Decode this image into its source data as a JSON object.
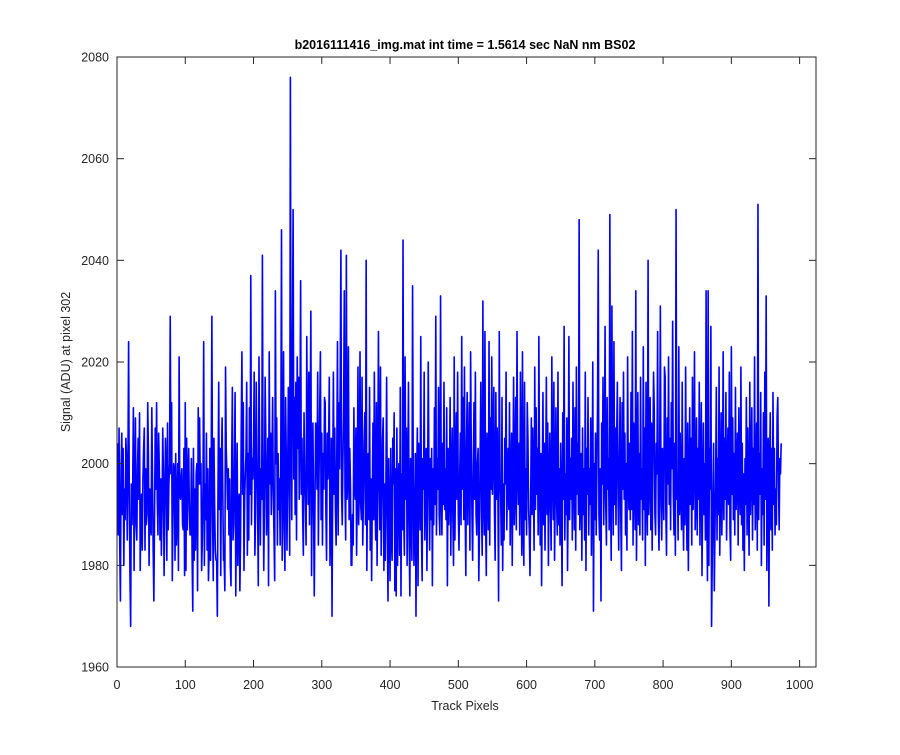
{
  "chart_data": {
    "type": "line",
    "title": "b2016111416_img.mat int time = 1.5614 sec  NaN nm BS02",
    "xlabel": "Track Pixels",
    "ylabel": "Signal (ADU) at pixel 302",
    "xlim": [
      0,
      1024
    ],
    "ylim": [
      1960,
      2080
    ],
    "xticks": [
      0,
      100,
      200,
      300,
      400,
      500,
      600,
      700,
      800,
      900,
      1000
    ],
    "yticks": [
      1960,
      1980,
      2000,
      2020,
      2040,
      2060,
      2080
    ],
    "grid": false,
    "legend": "none",
    "line_color": "#0000ff",
    "series": [
      {
        "x_start": 1,
        "x_step": 1,
        "approximate_shape": "noisy signal around 2000 ADU, approx. range 1968-2076",
        "values": [
          2004,
          1986,
          2007,
          1984,
          1973,
          1999,
          2006,
          1990,
          2003,
          1980,
          1995,
          1989,
          2005,
          2001,
          1985,
          1999,
          2024,
          1994,
          1978,
          1968,
          1996,
          1988,
          1996,
          2011,
          1979,
          1996,
          2009,
          1988,
          1985,
          1999,
          2005,
          1993,
          2010,
          1979,
          1991,
          1994,
          1983,
          1997,
          2003,
          2007,
          1983,
          1999,
          1988,
          1990,
          2012,
          2002,
          1980,
          1995,
          1989,
          1986,
          2011,
          1997,
          1983,
          1973,
          1990,
          2007,
          1995,
          2012,
          1993,
          1986,
          2006,
          1999,
          1985,
          1997,
          1982,
          1991,
          2007,
          1998,
          1978,
          1992,
          2005,
          1999,
          1981,
          2008,
          1987,
          1996,
          2000,
          2029,
          1998,
          2012,
          1977,
          1990,
          2000,
          1999,
          1981,
          2002,
          1984,
          1991,
          2000,
          1979,
          2021,
          1995,
          1993,
          1997,
          1999,
          1988,
          1987,
          2003,
          1978,
          2012,
          1979,
          2005,
          1987,
          1998,
          2003,
          1991,
          1986,
          1986,
          2001,
          1982,
          1971,
          2003,
          1981,
          1995,
          1983,
          1998,
          2000,
          1975,
          2011,
          1996,
          2009,
          1996,
          2000,
          1979,
          1985,
          1996,
          2024,
          1980,
          1996,
          1989,
          2006,
          1983,
          1999,
          1977,
          1983,
          2003,
          1981,
          1999,
          2029,
          1990,
          1977,
          2005,
          1992,
          1983,
          1981,
          1981,
          1970,
          1996,
          2016,
          1991,
          2003,
          1978,
          2000,
          2009,
          1994,
          1981,
          1981,
          1975,
          2019,
          2003,
          1998,
          1991,
          1999,
          1986,
          1997,
          1980,
          1976,
          2000,
          2015,
          1985,
          1988,
          2000,
          2014,
          1974,
          1991,
          2004,
          1980,
          1992,
          1994,
          1975,
          1985,
          2007,
          2022,
          1994,
          2012,
          1979,
          1993,
          1998,
          2002,
          2016,
          1982,
          2002,
          1985,
          2011,
          1994,
          2037,
          1988,
          2001,
          1997,
          2004,
          2018,
          1982,
          1990,
          2016,
          2001,
          1991,
          1976,
          2021,
          2002,
          1984,
          1999,
          1993,
          2041,
          1997,
          1979,
          1993,
          2017,
          2005,
          1986,
          1994,
          2005,
          1976,
          2022,
          1996,
          2006,
          1990,
          2000,
          2013,
          1994,
          1986,
          1977,
          2034,
          2000,
          2009,
          1984,
          2002,
          1991,
          1997,
          1984,
          2004,
          2046,
          1981,
          1995,
          2022,
          1987,
          1979,
          2013,
          2001,
          1983,
          1997,
          2015,
          1999,
          1982,
          2076,
          2007,
          1989,
          2023,
          2050,
          1997,
          2013,
          1990,
          2016,
          1985,
          2021,
          2003,
          2017,
          1993,
          2008,
          2036,
          1994,
          2005,
          1990,
          1982,
          2010,
          1998,
          1993,
          1984,
          2025,
          2003,
          1992,
          2018,
          1988,
          2007,
          2030,
          1978,
          1997,
          2008,
          1991,
          1974,
          1992,
          2008,
          2006,
          1995,
          2018,
          1984,
          1998,
          2011,
          2022,
          1989,
          2006,
          1984,
          2002,
          1995,
          2013,
          2012,
          1991,
          1981,
          2006,
          1997,
          2004,
          2017,
          1980,
          1989,
          2005,
          1970,
          1996,
          2018,
          1994,
          2007,
          1991,
          1984,
          2002,
          2024,
          1986,
          2012,
          1999,
          2017,
          2042,
          1994,
          1988,
          2001,
          2011,
          2034,
          1995,
          1985,
          2041,
          1993,
          1996,
          2023,
          1989,
          2003,
          1996,
          1980,
          1980,
          1990,
          1984,
          2011,
          1996,
          1993,
          2007,
          1982,
          1996,
          2019,
          1988,
          1995,
          2022,
          1992,
          1989,
          2017,
          1984,
          1993,
          2004,
          2010,
          1988,
          2040,
          1979,
          1996,
          2002,
          1989,
          2015,
          1983,
          1997,
          1977,
          1994,
          2008,
          1989,
          2018,
          1993,
          1985,
          2012,
          1980,
          1996,
          2026,
          1998,
          1987,
          2019,
          1982,
          1992,
          2005,
          2009,
          1979,
          1996,
          1981,
          1997,
          2017,
          1988,
          1973,
          2001,
          1990,
          1977,
          2003,
          1985,
          1981,
          2005,
          1996,
          2010,
          1975,
          1999,
          1974,
          2007,
          1980,
          1996,
          2000,
          1982,
          2015,
          1974,
          1998,
          1987,
          2044,
          1990,
          1982,
          2021,
          1993,
          2007,
          1980,
          1997,
          2016,
          1985,
          1974,
          2001,
          1992,
          1981,
          2035,
          1997,
          1980,
          1988,
          2002,
          1970,
          1997,
          2007,
          1976,
          2004,
          1998,
          1987,
          2025,
          1987,
          1977,
          2001,
          1995,
          2018,
          1985,
          1999,
          2003,
          1979,
          1995,
          2020,
          1998,
          1983,
          2001,
          1989,
          2003,
          1976,
          1999,
          1988,
          2011,
          1992,
          2029,
          1986,
          2001,
          1995,
          2015,
          1990,
          1986,
          2033,
          1995,
          1986,
          2004,
          1992,
          2016,
          1991,
          1999,
          1989,
          2011,
          1976,
          2003,
          1988,
          1995,
          2013,
          1982,
          1997,
          2007,
          1990,
          1980,
          2021,
          1985,
          1999,
          2010,
          1993,
          2018,
          1990,
          1983,
          1997,
          2006,
          1988,
          2025,
          1995,
          2013,
          1989,
          2019,
          1992,
          1978,
          2004,
          2014,
          1988,
          1999,
          2012,
          1983,
          2022,
          2003,
          1990,
          1981,
          2000,
          2012,
          1993,
          2018,
          1990,
          1986,
          2000,
          2003,
          1977,
          1987,
          2002,
          2016,
          1991,
          1982,
          2032,
          1993,
          1986,
          2026,
          1989,
          1978,
          2006,
          1996,
          1987,
          2024,
          1984,
          2009,
          1995,
          2021,
          1994,
          2002,
          2015,
          1990,
          1981,
          2014,
          1993,
          2007,
          1995,
          1973,
          2026,
          1997,
          1994,
          1984,
          2013,
          1979,
          1996,
          1985,
          2005,
          1996,
          2018,
          1987,
          1998,
          2003,
          1991,
          2012,
          1984,
          1995,
          2006,
          1980,
          1997,
          2017,
          1988,
          1995,
          2013,
          1987,
          2026,
          1998,
          1992,
          2004,
          1986,
          2018,
          1999,
          1982,
          2022,
          1988,
          1980,
          2016,
          1989,
          1999,
          1986,
          2012,
          2005,
          1991,
          1987,
          1978,
          1993,
          2009,
          1990,
          2007,
          1996,
          1983,
          2019,
          1991,
          2011,
          1994,
          2003,
          1986,
          2025,
          1998,
          1984,
          2002,
          1976,
          1996,
          2014,
          1988,
          2004,
          1983,
          1998,
          2017,
          1990,
          2008,
          1980,
          1996,
          2006,
          1992,
          1983,
          2021,
          1998,
          1989,
          2016,
          1981,
          1995,
          2011,
          1993,
          1986,
          2018,
          1988,
          1999,
          1984,
          2004,
          1991,
          1976,
          2010,
          1993,
          2027,
          1985,
          1998,
          1990,
          2009,
          1979,
          1994,
          2025,
          1989,
          2001,
          1993,
          2005,
          1985,
          2016,
          1997,
          1987,
          2011,
          1983,
          2019,
          1994,
          2004,
          1990,
          2048,
          1987,
          1995,
          2002,
          1981,
          2007,
          1990,
          1999,
          1985,
          2018,
          1979,
          2003,
          1994,
          2013,
          1986,
          1999,
          1992,
          2009,
          1982,
          1994,
          2020,
          1971,
          2000,
          1989,
          2006,
          1986,
          1998,
          2012,
          2042,
          1990,
          1985,
          1999,
          1973,
          2008,
          1996,
          2017,
          1988,
          1999,
          2027,
          1992,
          1984,
          2013,
          1995,
          2001,
          1987,
          2049,
          1994,
          1981,
          2031,
          1999,
          1986,
          2024,
          1992,
          2007,
          1988,
          2005,
          2016,
          1994,
          1983,
          2001,
          2013,
          1990,
          1979,
          2012,
          1995,
          2018,
          1993,
          2006,
          1986,
          2000,
          1983,
          2021,
          1996,
          1991,
          2004,
          1989,
          2014,
          1991,
          2026,
          1984,
          2008,
          1996,
          1987,
          2034,
          1981,
          1996,
          2014,
          1988,
          2002,
          1986,
          2017,
          1993,
          1999,
          1985,
          2023,
          1991,
          2007,
          1980,
          2016,
          1995,
          1986,
          2040,
          1990,
          1997,
          2013,
          1987,
          2008,
          1983,
          1999,
          2018,
          2011,
          1990,
          1986,
          2004,
          1998,
          2026,
          1990,
          1983,
          2001,
          2031,
          1992,
          1985,
          2003,
          1996,
          1989,
          2019,
          2017,
          1991,
          1982,
          2009,
          1996,
          2021,
          1992,
          2005,
          1987,
          2012,
          1999,
          2028,
          1994,
          1986,
          2004,
          1982,
          2050,
          1993,
          1998,
          1985,
          2023,
          1990,
          2006,
          1994,
          1987,
          2016,
          1993,
          1983,
          2001,
          1988,
          2019,
          1995,
          1983,
          2008,
          1979,
          1996,
          2011,
          1992,
          2005,
          1984,
          2017,
          1991,
          1999,
          2022,
          1987,
          1993,
          2009,
          1986,
          2003,
          1993,
          2016,
          1984,
          1998,
          2012,
          1978,
          1994,
          2008,
          1990,
          2000,
          1985,
          2034,
          1991,
          1977,
          2034,
          1980,
          2003,
          1995,
          2027,
          1968,
          1981,
          1995,
          2004,
          1975,
          1987,
          1997,
          2015,
          1985,
          2001,
          1990,
          2019,
          1982,
          1994,
          2010,
          1986,
          1996,
          2022,
          1989,
          2005,
          1993,
          2014,
          1985,
          1998,
          2007,
          1992,
          2018,
          1987,
          1981,
          2023,
          1994,
          2009,
          1989,
          2002,
          1986,
          2015,
          1991,
          1997,
          2006,
          1984,
          2011,
          1995,
          1990,
          2019,
          1988,
          2004,
          1983,
          1998,
          1979,
          2001,
          1992,
          2013,
          1986,
          2007,
          1994,
          1982,
          2016,
          1990,
          1999,
          2011,
          1985,
          2003,
          1992,
          2021,
          1987,
          1996,
          2008,
          1983,
          2051,
          1989,
          2002,
          1994,
          2014,
          1980,
          1999,
          1990,
          2010,
          1984,
          2018,
          1993,
          2033,
          1979,
          1997,
          2005,
          1972,
          1999,
          2010,
          1987,
          2003,
          1983,
          2014,
          1992,
          2003,
          1986,
          1995,
          1988,
          2009,
          2013,
          1997,
          1987,
          2001,
          1998,
          2004
        ]
      }
    ]
  }
}
